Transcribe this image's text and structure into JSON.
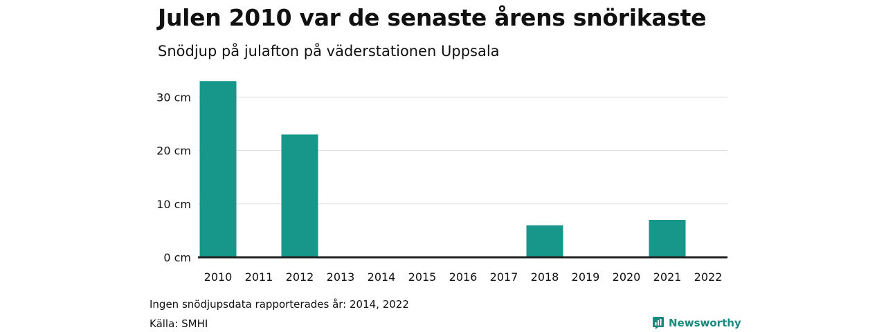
{
  "header": {
    "title": "Julen 2010 var de senaste årens snörikaste",
    "subtitle": "Snödjup på julafton på väderstationen Uppsala"
  },
  "chart_data": {
    "type": "bar",
    "categories": [
      "2010",
      "2011",
      "2012",
      "2013",
      "2014",
      "2015",
      "2016",
      "2017",
      "2018",
      "2019",
      "2020",
      "2021",
      "2022"
    ],
    "values": [
      33,
      0,
      23,
      0,
      null,
      0,
      0,
      0,
      6,
      0,
      0,
      7,
      null
    ],
    "yticks": [
      0,
      10,
      20,
      30
    ],
    "ytick_labels": [
      "0 cm",
      "10 cm",
      "20 cm",
      "30 cm"
    ],
    "ylim": [
      0,
      33
    ],
    "grid": true,
    "bar_color": "#16978a"
  },
  "footer": {
    "note": "Ingen snödjupsdata rapporterades år: 2014, 2022",
    "source": "Källa: SMHI",
    "brand": "Newsworthy",
    "brand_color": "#1a8a7e"
  }
}
